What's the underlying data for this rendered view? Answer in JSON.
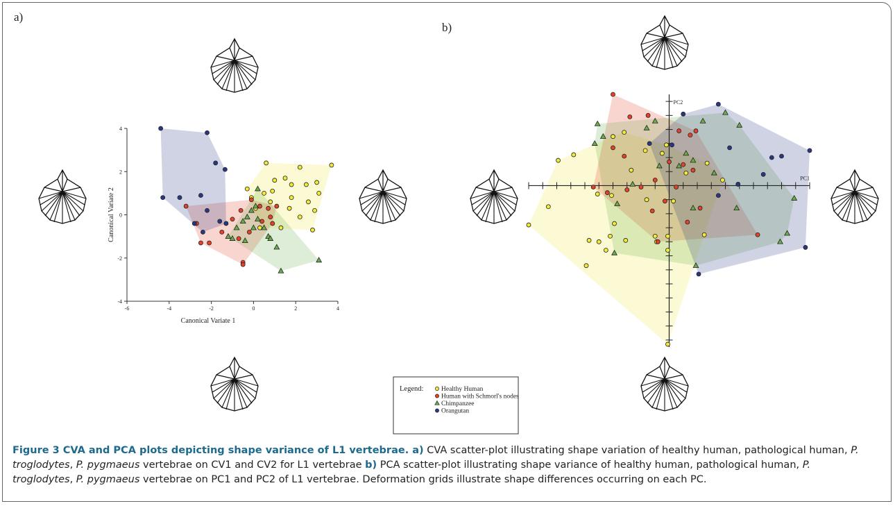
{
  "chart_data": [
    {
      "type": "scatter",
      "panel": "a)",
      "axes": "box",
      "xlabel": "Canonical Variate 1",
      "ylabel": "Canonical Variate 2",
      "xlim": [
        -6,
        4
      ],
      "xticks": [
        -6,
        -4,
        -2,
        0,
        2,
        4
      ],
      "ylim": [
        -4,
        4
      ],
      "yticks": [
        -4,
        -2,
        0,
        2,
        4
      ],
      "hulls": true,
      "series": [
        {
          "name": "Healthy Human",
          "color": "#f2ea3a",
          "marker": "circle",
          "x": [
            0.6,
            3.7,
            2.2,
            1.0,
            1.5,
            1.8,
            2.5,
            3.0,
            3.1,
            2.6,
            2.9,
            1.7,
            2.2,
            2.8,
            0.5,
            0.8,
            -0.1,
            0.1,
            0.3,
            1.3,
            1.8,
            0.9,
            -0.3
          ],
          "y": [
            2.4,
            2.3,
            2.2,
            1.6,
            1.7,
            1.4,
            1.4,
            1.5,
            1.0,
            0.6,
            0.2,
            0.3,
            -0.1,
            -0.7,
            1.0,
            0.6,
            0.8,
            0.3,
            -0.6,
            -0.6,
            0.8,
            1.1,
            1.2
          ]
        },
        {
          "name": "Human with Schmorl's nodes",
          "color": "#e5412b",
          "marker": "circle",
          "x": [
            -3.2,
            -2.7,
            -2.5,
            -2.1,
            -1.5,
            -1.0,
            -0.7,
            -0.5,
            -0.5,
            -0.1,
            0.3,
            0.7,
            0.8,
            0.9,
            1.1,
            -0.2,
            0.4,
            -0.6
          ],
          "y": [
            0.4,
            -0.4,
            -1.3,
            -1.3,
            -0.8,
            -0.2,
            -1.1,
            -2.2,
            -2.3,
            0.7,
            0.4,
            0.3,
            -0.1,
            -0.4,
            0.4,
            -0.8,
            -0.3,
            0.2
          ]
        },
        {
          "name": "Chimpanzee",
          "color": "#6aae4a",
          "marker": "triangle",
          "x": [
            -1.0,
            -0.8,
            -0.5,
            -0.3,
            -0.1,
            0.0,
            0.2,
            0.5,
            0.7,
            1.1,
            1.3,
            3.1,
            0.2,
            0.1,
            -0.4,
            0.8,
            -1.2
          ],
          "y": [
            -1.1,
            -0.6,
            -0.3,
            -0.1,
            0.2,
            -0.6,
            -0.2,
            -0.6,
            -1.0,
            -1.5,
            -2.6,
            -2.1,
            1.2,
            0.4,
            -1.2,
            -1.1,
            -1.0
          ]
        },
        {
          "name": "Orangutan",
          "color": "#2a3785",
          "marker": "circle",
          "x": [
            -4.4,
            -2.2,
            -1.8,
            -1.35,
            -4.3,
            -3.5,
            -2.5,
            -2.2,
            -2.8,
            -1.6,
            -1.3,
            -2.4
          ],
          "y": [
            4.0,
            3.8,
            2.4,
            2.1,
            0.8,
            0.8,
            0.9,
            0.2,
            -0.4,
            -0.3,
            -0.4,
            -0.8
          ]
        }
      ]
    },
    {
      "type": "scatter",
      "panel": "b)",
      "axes": "cross",
      "xlabel": "PC1",
      "ylabel": "PC2",
      "xlim": [
        -10,
        10
      ],
      "xticks": [
        -10,
        -9,
        -8,
        -7,
        -6,
        -5,
        -4,
        -3,
        -2,
        -1,
        0,
        1,
        2,
        3,
        4,
        5,
        6,
        7,
        8,
        9,
        10
      ],
      "ylim": [
        -11.5,
        6.5
      ],
      "yticks": [
        -11,
        -10,
        -9,
        -8,
        -7,
        -6,
        -5,
        -4,
        -3,
        -2,
        -1,
        0,
        1,
        2,
        3,
        4,
        5,
        6
      ],
      "hulls": true,
      "series": [
        {
          "color": "#f2ea3a",
          "marker": "circle",
          "x": [
            -10.0,
            -8.6,
            -7.9,
            -6.8,
            -5.9,
            -5.7,
            -5.0,
            -4.5,
            -4.2,
            -3.9,
            -3.1,
            -4.1,
            -5.1,
            -3.2,
            -4.0,
            -2.7,
            -1.6,
            -1.0,
            -0.9,
            -0.1,
            -0.1,
            -0.1,
            2.5,
            3.8,
            1.2,
            2.7,
            -0.5,
            -0.2,
            0.3,
            -1.7
          ],
          "y": [
            -2.8,
            -1.5,
            1.8,
            2.2,
            -5.7,
            -3.9,
            -4.0,
            -4.6,
            -3.6,
            -2.7,
            -3.9,
            -0.7,
            -0.6,
            3.8,
            3.5,
            1.1,
            -1.0,
            -3.6,
            -4.0,
            -3.6,
            -4.6,
            -11.3,
            -3.5,
            0.4,
            0.9,
            1.6,
            2.3,
            2.9,
            -1.1,
            2.5
          ]
        },
        {
          "color": "#e5412b",
          "marker": "circle",
          "x": [
            -4.0,
            -2.8,
            -1.5,
            0.7,
            1.5,
            1.9,
            -4.0,
            -3.2,
            0.0,
            1.0,
            1.7,
            -5.4,
            -4.4,
            -3.0,
            -2.0,
            -1.0,
            0.5,
            2.2,
            1.3,
            6.3,
            -0.8,
            -1.2,
            -0.3
          ],
          "y": [
            6.5,
            4.9,
            5.0,
            3.9,
            3.6,
            3.9,
            2.7,
            2.1,
            1.7,
            1.5,
            1.1,
            -0.1,
            -0.5,
            -0.3,
            -0.1,
            0.4,
            -0.1,
            -1.6,
            -2.6,
            -3.5,
            -4.0,
            -1.8,
            -1.1
          ]
        },
        {
          "color": "#6aae4a",
          "marker": "triangle",
          "x": [
            4.0,
            5.0,
            2.4,
            -1.0,
            -5.1,
            -5.3,
            -4.7,
            -1.6,
            1.2,
            1.7,
            3.2,
            4.8,
            8.9,
            8.4,
            7.9,
            1.9,
            -3.7,
            -3.9,
            -0.7,
            0.7,
            1.7,
            -2.6
          ],
          "y": [
            5.2,
            4.3,
            4.6,
            4.6,
            4.4,
            3.0,
            3.5,
            4.1,
            2.3,
            1.8,
            0.9,
            -1.6,
            -0.9,
            -3.4,
            -4.0,
            -5.7,
            -1.3,
            -4.8,
            1.4,
            1.4,
            -1.6,
            0.1
          ]
        },
        {
          "color": "#2a3785",
          "marker": "circle",
          "x": [
            3.5,
            10.0,
            8.0,
            7.3,
            4.3,
            6.7,
            4.9,
            9.7,
            2.1,
            -1.4,
            0.2,
            1.0,
            3.5
          ],
          "y": [
            5.8,
            2.5,
            2.1,
            2.0,
            2.7,
            0.8,
            0.1,
            -4.4,
            -6.3,
            3.0,
            2.9,
            5.1,
            -0.7
          ]
        }
      ]
    }
  ],
  "legend": {
    "title": "Legend:"
  },
  "caption": [
    {
      "text": "Figure 3 CVA and PCA plots depicting shape variance of L1 vertebrae. a)",
      "style": "bold"
    },
    {
      "text": " CVA scatter-plot illustrating shape variation of healthy human, pathological human, ",
      "style": "normal"
    },
    {
      "text": "P. troglodytes",
      "style": "italic"
    },
    {
      "text": ", ",
      "style": "normal"
    },
    {
      "text": "P. pygmaeus",
      "style": "italic"
    },
    {
      "text": " vertebrae on CV1 and CV2 for L1 vertebrae ",
      "style": "normal"
    },
    {
      "text": "b)",
      "style": "bold"
    },
    {
      "text": " PCA scatter-plot illustrating shape variance of healthy human, pathological human, ",
      "style": "normal"
    },
    {
      "text": "P. troglodytes",
      "style": "italic"
    },
    {
      "text": ", ",
      "style": "normal"
    },
    {
      "text": "P. pygmaeus",
      "style": "italic"
    },
    {
      "text": " vertebrae on PC1 and PC2 of L1 vertebrae. Deformation grids illustrate shape differences occurring on each PC.",
      "style": "normal"
    }
  ]
}
